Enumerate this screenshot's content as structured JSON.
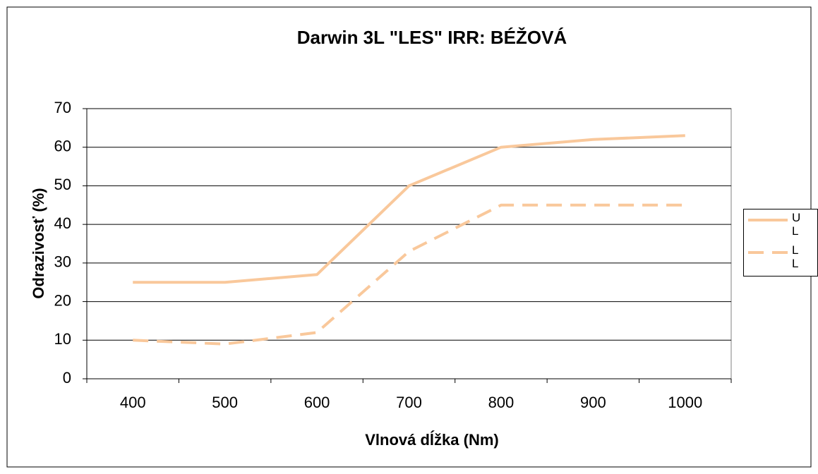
{
  "chart_data": {
    "type": "line",
    "title": "Darwin 3L \"LES\" IRR: BÉŽOVÁ",
    "x_label": "Vlnová dĺžka (Nm)",
    "y_label": "Odrazivosť (%)",
    "categories": [
      "400",
      "500",
      "600",
      "700",
      "800",
      "900",
      "1000"
    ],
    "series": [
      {
        "name": "UL",
        "color": "#f9c89b",
        "dash": "solid",
        "values": [
          25,
          25,
          27,
          50,
          60,
          62,
          63
        ]
      },
      {
        "name": "LL",
        "color": "#f9c89b",
        "dash": "dashed",
        "values": [
          10,
          9,
          12,
          33,
          45,
          45,
          45
        ]
      }
    ],
    "ylim": [
      0,
      70
    ],
    "yticks": [
      0,
      10,
      20,
      30,
      40,
      50,
      60,
      70
    ],
    "grid": true,
    "legend": "right"
  }
}
